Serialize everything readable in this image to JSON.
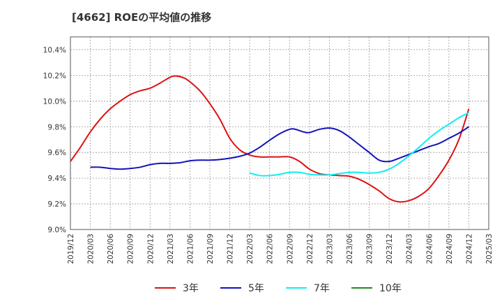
{
  "chart_data": {
    "type": "line",
    "title": "[4662]  ROEの平均値の推移",
    "xlabel": "",
    "ylabel": "",
    "ylim": [
      9.0,
      10.5
    ],
    "yticks": [
      9.0,
      9.2,
      9.4,
      9.6,
      9.8,
      10.0,
      10.2,
      10.4
    ],
    "ytick_labels": [
      "9.0%",
      "9.2%",
      "9.4%",
      "9.6%",
      "9.8%",
      "10.0%",
      "10.2%",
      "10.4%"
    ],
    "x_ticks": [
      "2019/12",
      "2020/03",
      "2020/06",
      "2020/09",
      "2020/12",
      "2021/03",
      "2021/06",
      "2021/09",
      "2021/12",
      "2022/03",
      "2022/06",
      "2022/09",
      "2022/12",
      "2023/03",
      "2023/06",
      "2023/09",
      "2023/12",
      "2024/03",
      "2024/06",
      "2024/09",
      "2024/12",
      "2025/03"
    ],
    "grid": true,
    "legend_position": "bottom",
    "series": [
      {
        "name": "3年",
        "color": "#dd1111",
        "x": [
          0,
          0.5,
          1,
          1.5,
          2,
          2.5,
          3,
          3.5,
          4,
          4.5,
          5,
          5.3,
          5.7,
          6,
          6.5,
          7,
          7.5,
          8,
          8.5,
          9,
          9.5,
          10,
          10.5,
          11,
          11.5,
          12,
          12.5,
          13,
          13.5,
          14,
          14.5,
          15,
          15.5,
          16,
          16.5,
          17,
          17.5,
          18,
          18.5,
          19,
          19.5,
          20
        ],
        "y": [
          9.53,
          9.64,
          9.76,
          9.86,
          9.94,
          10.0,
          10.05,
          10.08,
          10.1,
          10.14,
          10.185,
          10.195,
          10.18,
          10.15,
          10.08,
          9.98,
          9.86,
          9.71,
          9.62,
          9.58,
          9.565,
          9.565,
          9.565,
          9.565,
          9.53,
          9.47,
          9.435,
          9.425,
          9.42,
          9.415,
          9.39,
          9.35,
          9.3,
          9.24,
          9.215,
          9.225,
          9.26,
          9.32,
          9.42,
          9.54,
          9.7,
          9.94
        ]
      },
      {
        "name": "5年",
        "color": "#1111bb",
        "x": [
          1,
          1.5,
          2,
          2.5,
          3,
          3.5,
          4,
          4.5,
          5,
          5.5,
          6,
          6.5,
          7,
          7.5,
          8,
          8.5,
          9,
          9.5,
          10,
          10.5,
          11,
          11.3,
          11.7,
          12,
          12.5,
          13,
          13.5,
          14,
          14.5,
          15,
          15.5,
          16,
          16.5,
          17,
          17.5,
          18,
          18.5,
          19,
          19.5,
          20
        ],
        "y": [
          9.485,
          9.485,
          9.475,
          9.47,
          9.475,
          9.485,
          9.505,
          9.515,
          9.515,
          9.52,
          9.535,
          9.54,
          9.54,
          9.545,
          9.555,
          9.57,
          9.595,
          9.64,
          9.695,
          9.745,
          9.78,
          9.78,
          9.76,
          9.755,
          9.78,
          9.79,
          9.77,
          9.72,
          9.66,
          9.6,
          9.54,
          9.53,
          9.555,
          9.585,
          9.615,
          9.645,
          9.67,
          9.71,
          9.75,
          9.8
        ]
      },
      {
        "name": "7年",
        "color": "#11eeee",
        "x": [
          9,
          9.5,
          10,
          10.5,
          11,
          11.5,
          12,
          12.5,
          13,
          13.5,
          14,
          14.5,
          15,
          15.5,
          16,
          16.5,
          17,
          17.5,
          18,
          18.5,
          19,
          19.5,
          20
        ],
        "y": [
          9.44,
          9.42,
          9.42,
          9.43,
          9.445,
          9.445,
          9.43,
          9.425,
          9.425,
          9.435,
          9.445,
          9.445,
          9.44,
          9.445,
          9.47,
          9.515,
          9.575,
          9.64,
          9.71,
          9.77,
          9.82,
          9.87,
          9.91
        ]
      },
      {
        "name": "10年",
        "color": "#228822",
        "x": [],
        "y": []
      }
    ]
  }
}
